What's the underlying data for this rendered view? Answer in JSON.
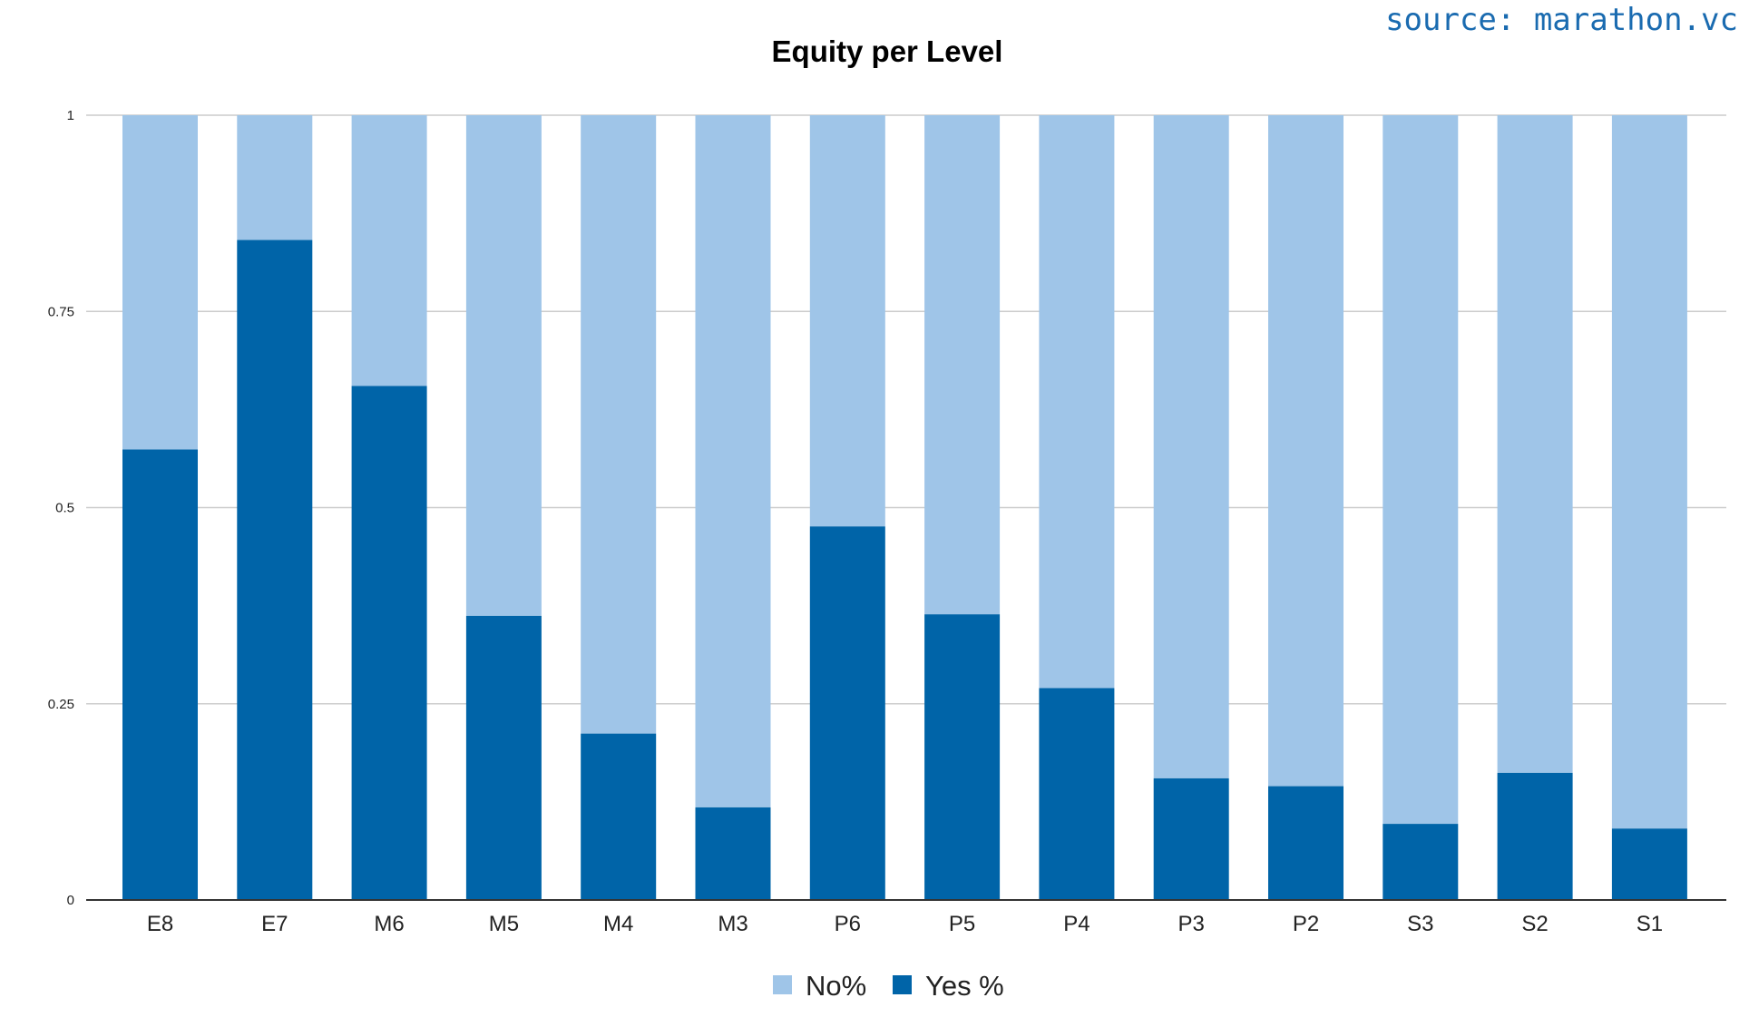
{
  "source_label": "source: marathon.vc",
  "chart_data": {
    "type": "bar",
    "stacked": true,
    "title": "Equity per Level",
    "xlabel": "",
    "ylabel": "",
    "ylim": [
      0,
      1
    ],
    "yticks": [
      "0",
      "0.25",
      "0.5",
      "0.75",
      "1"
    ],
    "grid": true,
    "legend_position": "bottom",
    "categories": [
      "E8",
      "E7",
      "M6",
      "M5",
      "M4",
      "M3",
      "P6",
      "P5",
      "P4",
      "P3",
      "P2",
      "S3",
      "S2",
      "S1"
    ],
    "series": [
      {
        "name": "Yes %",
        "color": "#0064a8",
        "values": [
          0.574,
          0.841,
          0.655,
          0.362,
          0.212,
          0.118,
          0.476,
          0.364,
          0.27,
          0.155,
          0.145,
          0.097,
          0.162,
          0.091
        ]
      },
      {
        "name": "No%",
        "color": "#9fc5e8",
        "values": [
          0.426,
          0.159,
          0.345,
          0.638,
          0.788,
          0.882,
          0.524,
          0.636,
          0.73,
          0.845,
          0.855,
          0.903,
          0.838,
          0.909
        ]
      }
    ],
    "legend": [
      "No%",
      "Yes %"
    ]
  }
}
